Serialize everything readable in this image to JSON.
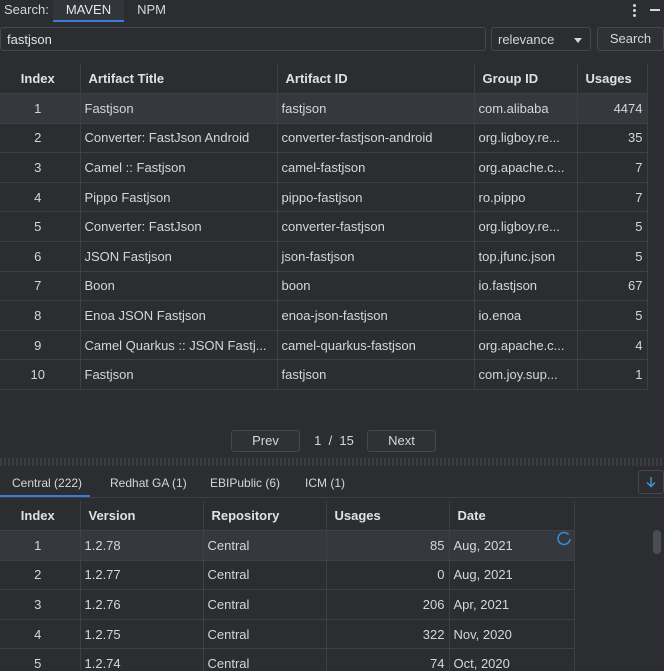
{
  "topbar": {
    "search_label": "Search:",
    "tabs": [
      "MAVEN",
      "NPM"
    ]
  },
  "query": {
    "value": "fastjson",
    "sort": "relevance",
    "search_label": "Search"
  },
  "results": {
    "headers": [
      "Index",
      "Artifact Title",
      "Artifact ID",
      "Group ID",
      "Usages"
    ],
    "rows": [
      {
        "index": "1",
        "title": "Fastjson",
        "artifact": "fastjson",
        "group": "com.alibaba",
        "usages": "4474"
      },
      {
        "index": "2",
        "title": "Converter: FastJson Android",
        "artifact": "converter-fastjson-android",
        "group": "org.ligboy.re...",
        "usages": "35"
      },
      {
        "index": "3",
        "title": "Camel :: Fastjson",
        "artifact": "camel-fastjson",
        "group": "org.apache.c...",
        "usages": "7"
      },
      {
        "index": "4",
        "title": "Pippo Fastjson",
        "artifact": "pippo-fastjson",
        "group": "ro.pippo",
        "usages": "7"
      },
      {
        "index": "5",
        "title": "Converter: FastJson",
        "artifact": "converter-fastjson",
        "group": "org.ligboy.re...",
        "usages": "5"
      },
      {
        "index": "6",
        "title": "JSON Fastjson",
        "artifact": "json-fastjson",
        "group": "top.jfunc.json",
        "usages": "5"
      },
      {
        "index": "7",
        "title": "Boon",
        "artifact": "boon",
        "group": "io.fastjson",
        "usages": "67"
      },
      {
        "index": "8",
        "title": "Enoa JSON Fastjson",
        "artifact": "enoa-json-fastjson",
        "group": "io.enoa",
        "usages": "5"
      },
      {
        "index": "9",
        "title": "Camel Quarkus :: JSON Fastj...",
        "artifact": "camel-quarkus-fastjson",
        "group": "org.apache.c...",
        "usages": "4"
      },
      {
        "index": "10",
        "title": "Fastjson",
        "artifact": "fastjson",
        "group": "com.joy.sup...",
        "usages": "1"
      }
    ]
  },
  "pager": {
    "prev_label": "Prev",
    "page_text": "1  /  15",
    "next_label": "Next"
  },
  "repo_tabs": [
    "Central (222)",
    "Redhat GA (1)",
    "EBIPublic (6)",
    "ICM (1)"
  ],
  "versions": {
    "headers": [
      "Index",
      "Version",
      "Repository",
      "Usages",
      "Date"
    ],
    "rows": [
      {
        "index": "1",
        "version": "1.2.78",
        "repository": "Central",
        "usages": "85",
        "date": "Aug, 2021"
      },
      {
        "index": "2",
        "version": "1.2.77",
        "repository": "Central",
        "usages": "0",
        "date": "Aug, 2021"
      },
      {
        "index": "3",
        "version": "1.2.76",
        "repository": "Central",
        "usages": "206",
        "date": "Apr, 2021"
      },
      {
        "index": "4",
        "version": "1.2.75",
        "repository": "Central",
        "usages": "322",
        "date": "Nov, 2020"
      },
      {
        "index": "5",
        "version": "1.2.74",
        "repository": "Central",
        "usages": "74",
        "date": "Oct, 2020"
      }
    ]
  },
  "colors": {
    "accent": "#3d7bd6",
    "background": "#2b2d30",
    "selected_row": "#35383d"
  },
  "icons": [
    "kebab-menu-icon",
    "minimize-icon",
    "dropdown-caret-icon",
    "download-icon",
    "loading-spinner-icon"
  ]
}
